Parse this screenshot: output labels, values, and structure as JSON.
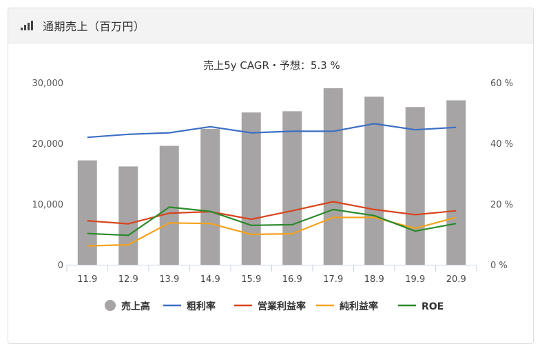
{
  "header": {
    "title": "通期売上（百万円）",
    "icon": "bar-chart-icon"
  },
  "chart_data": {
    "type": "bar",
    "title": "売上5y CAGR・予想：5.3 %",
    "categories": [
      "11.9",
      "12.9",
      "13.9",
      "14.9",
      "15.9",
      "16.9",
      "17.9",
      "18.9",
      "19.9",
      "20.9"
    ],
    "y_left": {
      "ylim": [
        0,
        30000
      ],
      "ticks": [
        "0",
        "10,000",
        "20,000",
        "30,000"
      ]
    },
    "y_right": {
      "ylim": [
        0,
        60
      ],
      "ticks": [
        "0 %",
        "20 %",
        "40 %",
        "60 %"
      ]
    },
    "bars": {
      "name": "売上高",
      "color": "#a6a4a4",
      "values": [
        17200,
        16200,
        19600,
        22400,
        25100,
        25300,
        29100,
        27700,
        26000,
        27100
      ]
    },
    "series": [
      {
        "name": "粗利率",
        "color": "#3b6fc4",
        "axis": "right",
        "values": [
          42,
          43,
          43.5,
          45.5,
          43.5,
          44,
          44,
          46.5,
          44.5,
          45.3
        ]
      },
      {
        "name": "営業利益率",
        "color": "#d9441d",
        "axis": "right",
        "values": [
          14.5,
          13.5,
          17,
          17.5,
          15,
          17.8,
          20.8,
          18.2,
          16.5,
          17.8
        ]
      },
      {
        "name": "純利益率",
        "color": "#f4a21a",
        "axis": "right",
        "values": [
          6.2,
          6.6,
          13.8,
          13.6,
          10,
          10.2,
          15.6,
          15.6,
          12,
          15.6
        ]
      },
      {
        "name": "ROE",
        "color": "#2a8a2a",
        "axis": "right",
        "values": [
          10.3,
          9.7,
          19,
          17.6,
          13,
          13.2,
          18.2,
          16.2,
          11.1,
          13.6
        ]
      }
    ],
    "legend": [
      "売上高",
      "粗利率",
      "営業利益率",
      "純利益率",
      "ROE"
    ],
    "legend_position": "bottom",
    "grid": false
  }
}
